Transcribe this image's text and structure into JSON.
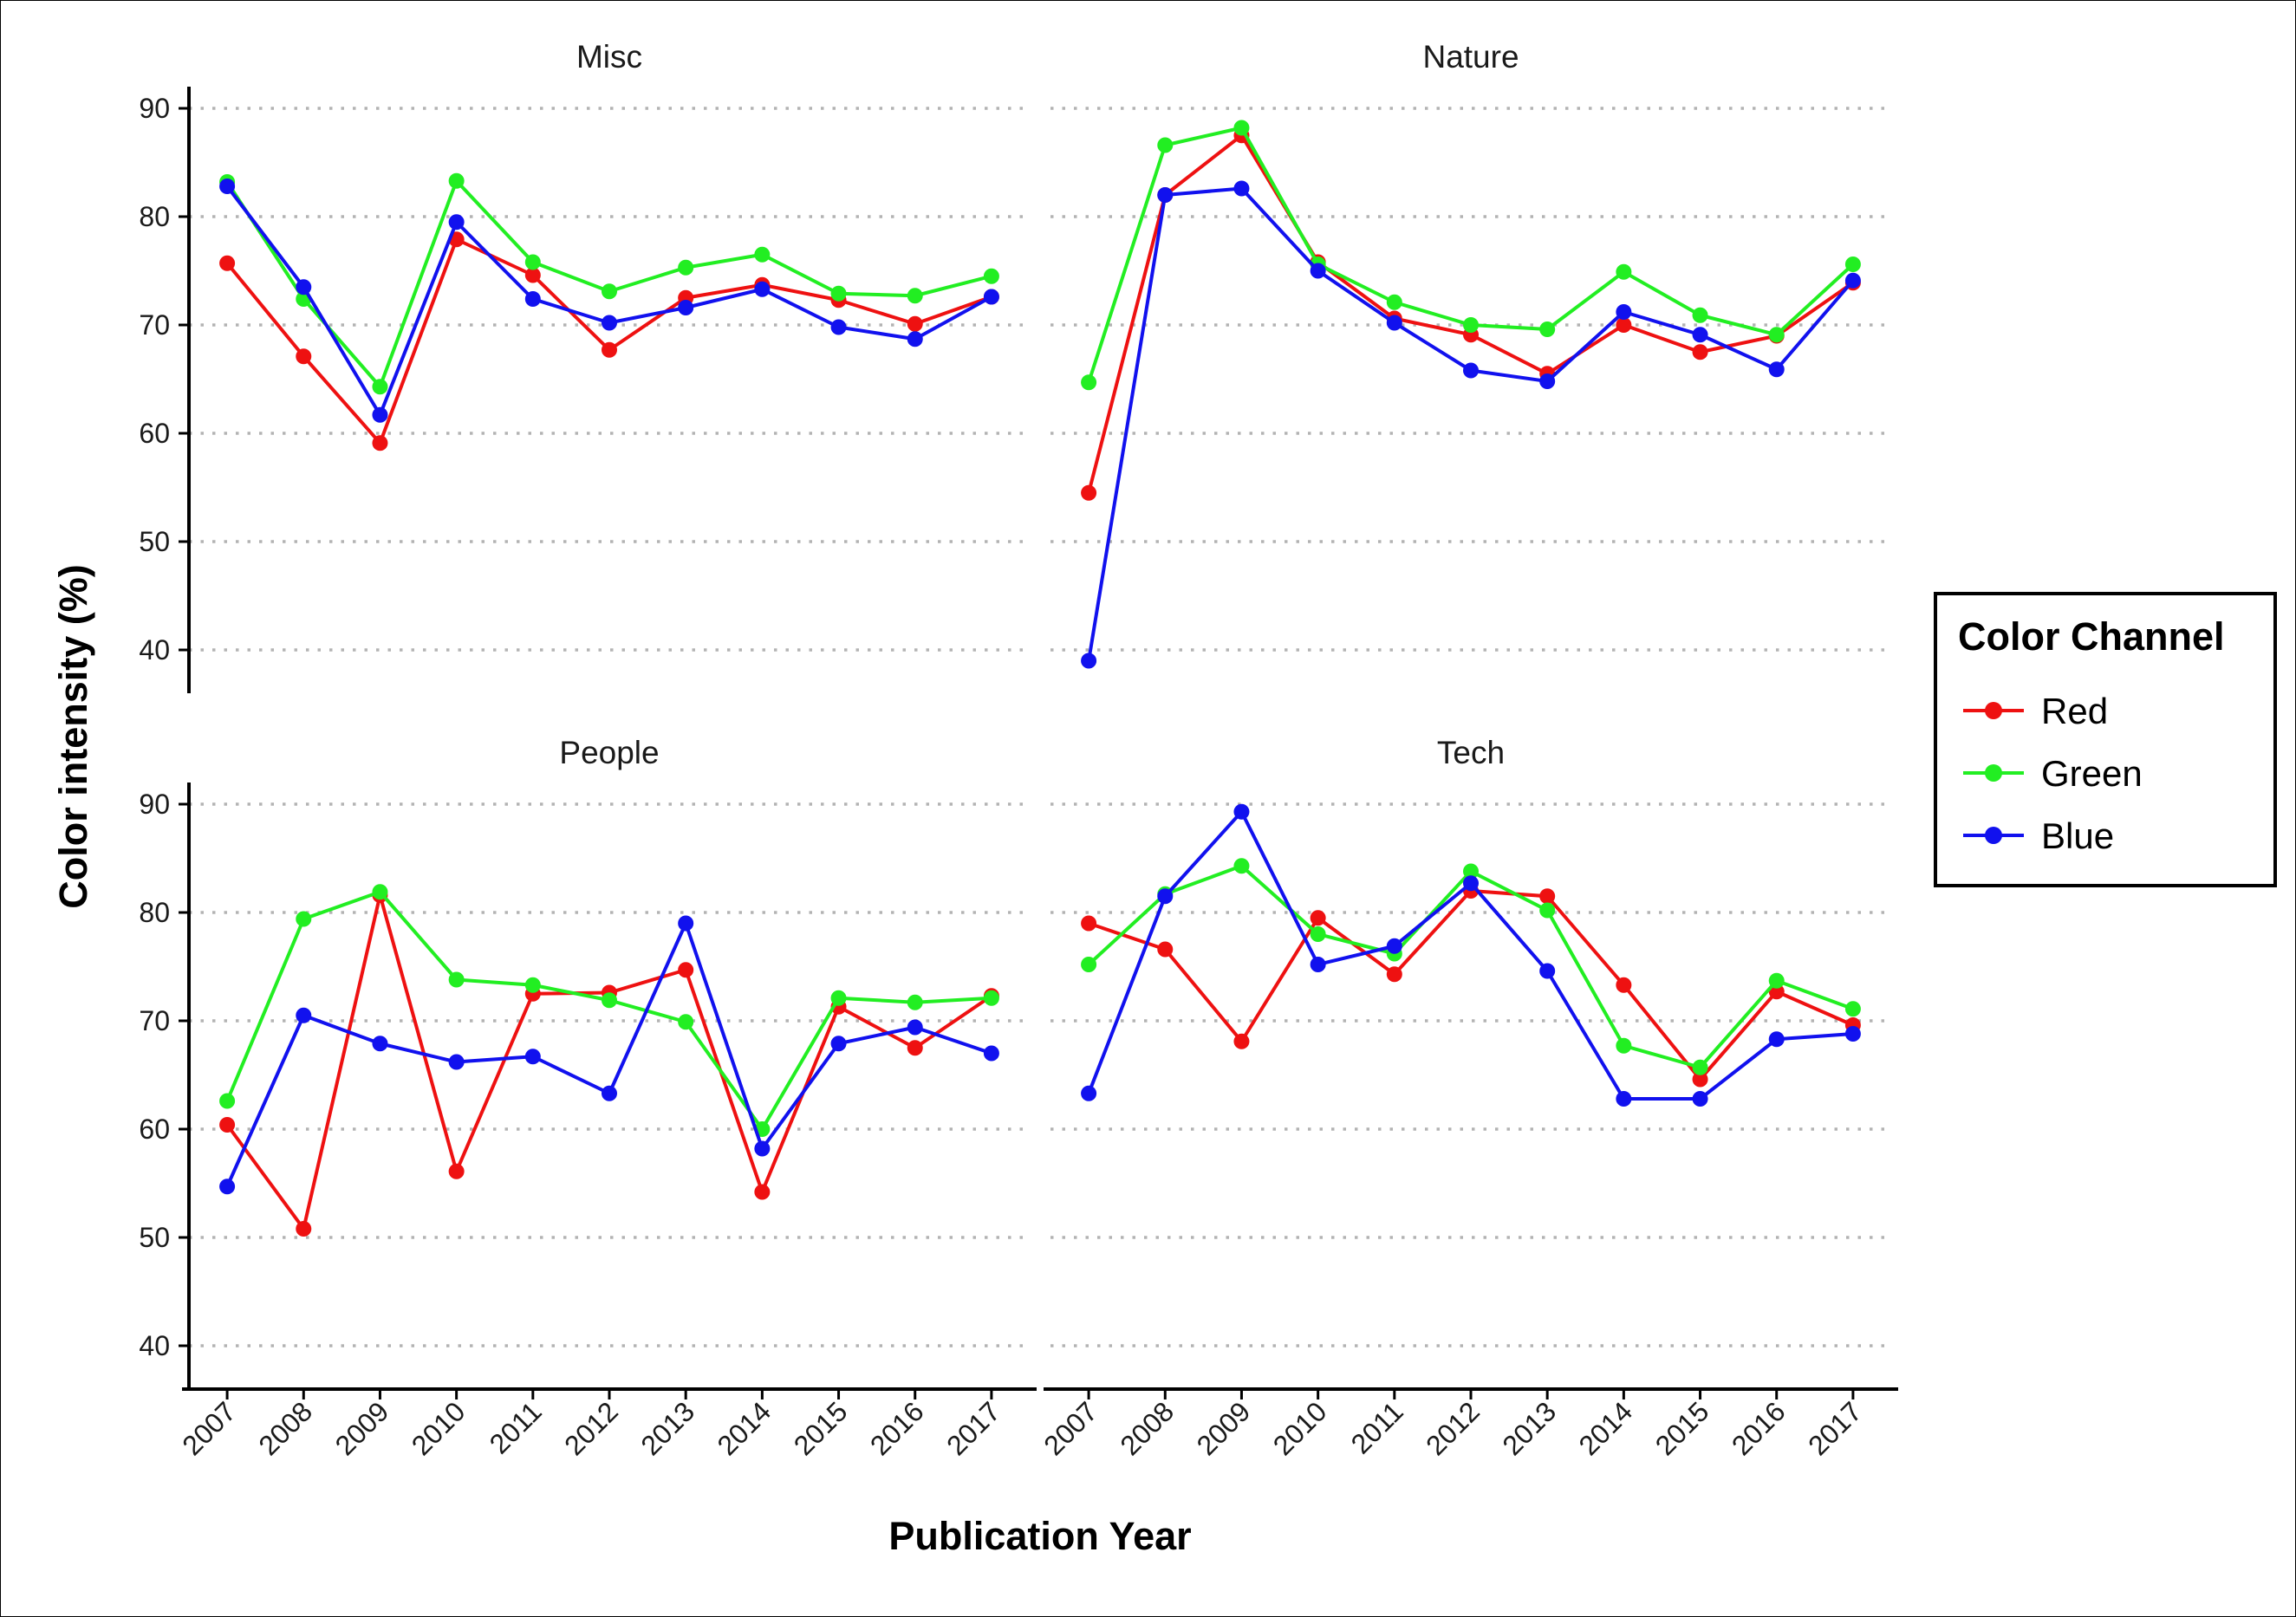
{
  "chart_data": {
    "type": "line",
    "xlabel": "Publication Year",
    "ylabel": "Color intensity (%)",
    "ylim": [
      36,
      92
    ],
    "yticks": [
      40,
      50,
      60,
      70,
      80,
      90
    ],
    "categories": [
      "2007",
      "2008",
      "2009",
      "2010",
      "2011",
      "2012",
      "2013",
      "2014",
      "2015",
      "2016",
      "2017"
    ],
    "legend": {
      "title": "Color Channel",
      "position": "right",
      "entries": [
        {
          "name": "Red",
          "color": "#ee1111"
        },
        {
          "name": "Green",
          "color": "#22ee22"
        },
        {
          "name": "Blue",
          "color": "#1111ee"
        }
      ]
    },
    "grid": "horizontal dotted",
    "panels": [
      {
        "title": "Misc",
        "series": [
          {
            "name": "Red",
            "values": [
              75.7,
              67.1,
              59.1,
              77.9,
              74.6,
              67.7,
              72.5,
              73.7,
              72.3,
              70.1,
              72.6
            ]
          },
          {
            "name": "Green",
            "values": [
              83.2,
              72.4,
              64.3,
              83.3,
              75.8,
              73.1,
              75.3,
              76.5,
              72.9,
              72.7,
              74.5
            ]
          },
          {
            "name": "Blue",
            "values": [
              82.8,
              73.5,
              61.7,
              79.5,
              72.4,
              70.2,
              71.6,
              73.3,
              69.8,
              68.7,
              72.6
            ]
          }
        ]
      },
      {
        "title": "Nature",
        "series": [
          {
            "name": "Red",
            "values": [
              54.5,
              82.0,
              87.5,
              75.8,
              70.6,
              69.1,
              65.5,
              70.0,
              67.5,
              69.0,
              73.9
            ]
          },
          {
            "name": "Green",
            "values": [
              64.7,
              86.6,
              88.2,
              75.6,
              72.1,
              70.0,
              69.6,
              74.9,
              70.9,
              69.1,
              75.6
            ]
          },
          {
            "name": "Blue",
            "values": [
              39.0,
              82.0,
              82.6,
              75.0,
              70.2,
              65.8,
              64.8,
              71.2,
              69.1,
              65.9,
              74.1
            ]
          }
        ]
      },
      {
        "title": "People",
        "series": [
          {
            "name": "Red",
            "values": [
              60.4,
              50.8,
              81.6,
              56.1,
              72.5,
              72.6,
              74.7,
              54.2,
              71.3,
              67.5,
              72.3
            ]
          },
          {
            "name": "Green",
            "values": [
              62.6,
              79.4,
              81.9,
              73.8,
              73.3,
              71.9,
              69.9,
              60.0,
              72.1,
              71.7,
              72.1
            ]
          },
          {
            "name": "Blue",
            "values": [
              54.7,
              70.5,
              67.9,
              66.2,
              66.7,
              63.3,
              79.0,
              58.2,
              67.9,
              69.4,
              67.0
            ]
          }
        ]
      },
      {
        "title": "Tech",
        "series": [
          {
            "name": "Red",
            "values": [
              79.0,
              76.6,
              68.1,
              79.5,
              74.3,
              82.0,
              81.5,
              73.3,
              64.6,
              72.7,
              69.6
            ]
          },
          {
            "name": "Green",
            "values": [
              75.2,
              81.7,
              84.3,
              78.0,
              76.2,
              83.8,
              80.2,
              67.7,
              65.7,
              73.7,
              71.1
            ]
          },
          {
            "name": "Blue",
            "values": [
              63.3,
              81.5,
              89.3,
              75.2,
              76.9,
              82.7,
              74.6,
              62.8,
              62.8,
              68.3,
              68.8
            ]
          }
        ]
      }
    ]
  }
}
